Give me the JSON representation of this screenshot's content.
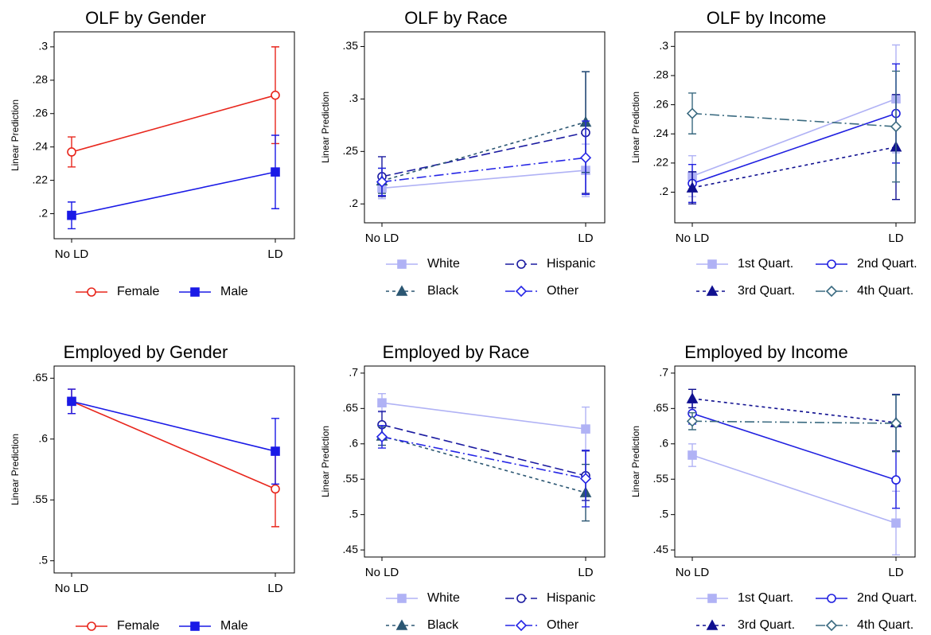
{
  "chart_data": [
    {
      "type": "line",
      "title": "OLF by Gender",
      "ylabel": "Linear Prediction",
      "categories": [
        "No LD",
        "LD"
      ],
      "ylim": [
        0.185,
        0.309
      ],
      "yticks": [
        {
          "value": 0.2,
          "label": ".2"
        },
        {
          "value": 0.22,
          "label": ".22"
        },
        {
          "value": 0.24,
          "label": ".24"
        },
        {
          "value": 0.26,
          "label": ".26"
        },
        {
          "value": 0.28,
          "label": ".28"
        },
        {
          "value": 0.3,
          "label": ".3"
        }
      ],
      "series": [
        {
          "name": "Female",
          "color": "#e8261c",
          "marker": "circle-open",
          "line_style": "solid",
          "values": [
            0.237,
            0.271
          ],
          "errors": [
            0.009,
            0.029
          ]
        },
        {
          "name": "Male",
          "color": "#1a1ae6",
          "marker": "square",
          "line_style": "solid",
          "values": [
            0.199,
            0.225
          ],
          "errors": [
            0.008,
            0.022
          ]
        }
      ]
    },
    {
      "type": "line",
      "title": "OLF by Race",
      "ylabel": "Linear Prediction",
      "categories": [
        "No LD",
        "LD"
      ],
      "ylim": [
        0.182,
        0.364
      ],
      "yticks": [
        {
          "value": 0.2,
          "label": ".2"
        },
        {
          "value": 0.25,
          "label": ".25"
        },
        {
          "value": 0.3,
          "label": ".3"
        },
        {
          "value": 0.35,
          "label": ".35"
        }
      ],
      "series": [
        {
          "name": "White",
          "color": "#b0b2f5",
          "marker": "square",
          "line_style": "solid",
          "values": [
            0.215,
            0.232
          ],
          "errors": [
            0.01,
            0.025
          ]
        },
        {
          "name": "Hispanic",
          "color": "#1a1aa0",
          "marker": "circle-open",
          "line_style": "dash",
          "values": [
            0.226,
            0.268
          ],
          "errors": [
            0.019,
            0.058
          ]
        },
        {
          "name": "Black",
          "color": "#2b5672",
          "marker": "triangle",
          "line_style": "shortdash",
          "values": [
            0.222,
            0.278
          ],
          "errors": [
            0.012,
            0.048
          ]
        },
        {
          "name": "Other",
          "color": "#2626e6",
          "marker": "diamond-open",
          "line_style": "dashdot",
          "values": [
            0.221,
            0.244
          ],
          "errors": [
            0.013,
            0.035
          ]
        }
      ]
    },
    {
      "type": "line",
      "title": "OLF by Income",
      "ylabel": "Linear Prediction",
      "categories": [
        "No LD",
        "LD"
      ],
      "ylim": [
        0.179,
        0.31
      ],
      "yticks": [
        {
          "value": 0.2,
          "label": ".2"
        },
        {
          "value": 0.22,
          "label": ".22"
        },
        {
          "value": 0.24,
          "label": ".24"
        },
        {
          "value": 0.26,
          "label": ".26"
        },
        {
          "value": 0.28,
          "label": ".28"
        },
        {
          "value": 0.3,
          "label": ".3"
        }
      ],
      "series": [
        {
          "name": "1st Quart.",
          "color": "#b0b2f5",
          "marker": "square",
          "line_style": "solid",
          "values": [
            0.211,
            0.264
          ],
          "errors": [
            0.014,
            0.037
          ]
        },
        {
          "name": "2nd Quart.",
          "color": "#2020e0",
          "marker": "circle-open",
          "line_style": "solid",
          "values": [
            0.206,
            0.254
          ],
          "errors": [
            0.013,
            0.034
          ]
        },
        {
          "name": "3rd Quart.",
          "color": "#101090",
          "marker": "triangle",
          "line_style": "shortdash",
          "values": [
            0.203,
            0.231
          ],
          "errors": [
            0.011,
            0.036
          ]
        },
        {
          "name": "4th Quart.",
          "color": "#3a6a80",
          "marker": "diamond-open",
          "line_style": "dashdot",
          "values": [
            0.254,
            0.245
          ],
          "errors": [
            0.014,
            0.038
          ]
        }
      ]
    },
    {
      "type": "line",
      "title": "Employed by Gender",
      "ylabel": "Linear Prediction",
      "categories": [
        "No LD",
        "LD"
      ],
      "ylim": [
        0.49,
        0.66
      ],
      "yticks": [
        {
          "value": 0.5,
          "label": ".5"
        },
        {
          "value": 0.55,
          "label": ".55"
        },
        {
          "value": 0.6,
          "label": ".6"
        },
        {
          "value": 0.65,
          "label": ".65"
        }
      ],
      "series": [
        {
          "name": "Female",
          "color": "#e8261c",
          "marker": "circle-open",
          "line_style": "solid",
          "values": [
            0.631,
            0.559
          ],
          "errors": [
            0.01,
            0.031
          ]
        },
        {
          "name": "Male",
          "color": "#1a1ae6",
          "marker": "square",
          "line_style": "solid",
          "values": [
            0.631,
            0.59
          ],
          "errors": [
            0.01,
            0.027
          ]
        }
      ]
    },
    {
      "type": "line",
      "title": "Employed by Race",
      "ylabel": "Linear Prediction",
      "categories": [
        "No LD",
        "LD"
      ],
      "ylim": [
        0.44,
        0.71
      ],
      "yticks": [
        {
          "value": 0.45,
          "label": ".45"
        },
        {
          "value": 0.5,
          "label": ".5"
        },
        {
          "value": 0.55,
          "label": ".55"
        },
        {
          "value": 0.6,
          "label": ".6"
        },
        {
          "value": 0.65,
          "label": ".65"
        },
        {
          "value": 0.7,
          "label": ".7"
        }
      ],
      "series": [
        {
          "name": "White",
          "color": "#b0b2f5",
          "marker": "square",
          "line_style": "solid",
          "values": [
            0.658,
            0.621
          ],
          "errors": [
            0.013,
            0.031
          ]
        },
        {
          "name": "Hispanic",
          "color": "#1a1aa0",
          "marker": "circle-open",
          "line_style": "dash",
          "values": [
            0.627,
            0.555
          ],
          "errors": [
            0.019,
            0.035
          ]
        },
        {
          "name": "Black",
          "color": "#2b5672",
          "marker": "triangle",
          "line_style": "shortdash",
          "values": [
            0.611,
            0.531
          ],
          "errors": [
            0.013,
            0.04
          ]
        },
        {
          "name": "Other",
          "color": "#2626e6",
          "marker": "diamond-open",
          "line_style": "dashdot",
          "values": [
            0.61,
            0.551
          ],
          "errors": [
            0.016,
            0.04
          ]
        }
      ]
    },
    {
      "type": "line",
      "title": "Employed by Income",
      "ylabel": "Linear Prediction",
      "categories": [
        "No LD",
        "LD"
      ],
      "ylim": [
        0.44,
        0.71
      ],
      "yticks": [
        {
          "value": 0.45,
          "label": ".45"
        },
        {
          "value": 0.5,
          "label": ".5"
        },
        {
          "value": 0.55,
          "label": ".55"
        },
        {
          "value": 0.6,
          "label": ".6"
        },
        {
          "value": 0.65,
          "label": ".65"
        },
        {
          "value": 0.7,
          "label": ".7"
        }
      ],
      "series": [
        {
          "name": "1st Quart.",
          "color": "#b0b2f5",
          "marker": "square",
          "line_style": "solid",
          "values": [
            0.584,
            0.488
          ],
          "errors": [
            0.016,
            0.045
          ]
        },
        {
          "name": "2nd Quart.",
          "color": "#2020e0",
          "marker": "circle-open",
          "line_style": "solid",
          "values": [
            0.643,
            0.549
          ],
          "errors": [
            0.015,
            0.04
          ]
        },
        {
          "name": "3rd Quart.",
          "color": "#101090",
          "marker": "triangle",
          "line_style": "shortdash",
          "values": [
            0.664,
            0.63
          ],
          "errors": [
            0.013,
            0.04
          ]
        },
        {
          "name": "4th Quart.",
          "color": "#3a6a80",
          "marker": "diamond-open",
          "line_style": "dashdot",
          "values": [
            0.632,
            0.629
          ],
          "errors": [
            0.012,
            0.04
          ]
        }
      ]
    }
  ]
}
